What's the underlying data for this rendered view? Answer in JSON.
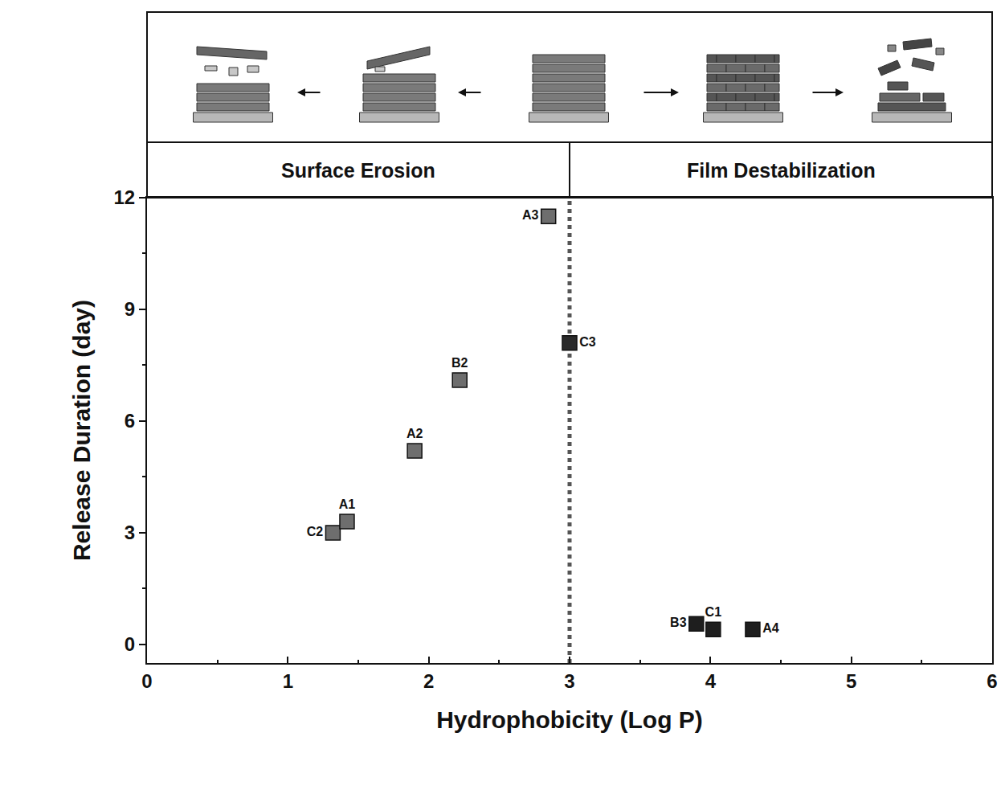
{
  "chart_data": {
    "type": "scatter",
    "x_label": "Hydrophobicity (Log P)",
    "y_label": "Release Duration (day)",
    "labels": [
      "C2",
      "A1",
      "A2",
      "B2",
      "A3",
      "C3",
      "B3",
      "C1",
      "A4"
    ],
    "x": [
      1.32,
      1.42,
      1.9,
      2.22,
      2.85,
      3.0,
      3.9,
      4.02,
      4.3
    ],
    "values": [
      3.0,
      3.3,
      5.2,
      7.1,
      11.5,
      8.1,
      0.55,
      0.4,
      0.4
    ],
    "colors": [
      "#6e6e6e",
      "#6e6e6e",
      "#6e6e6e",
      "#6e6e6e",
      "#6e6e6e",
      "#2a2a2a",
      "#1e1e1e",
      "#1e1e1e",
      "#1e1e1e"
    ],
    "marker": "square",
    "data_labels": true,
    "xlim": [
      0,
      6
    ],
    "xticks": [
      0,
      1,
      2,
      3,
      4,
      5,
      6
    ],
    "ylim": [
      -0.5,
      12
    ],
    "yticks": [
      0,
      3,
      6,
      9,
      12
    ],
    "grid": false,
    "boundary": 3,
    "line_style": "dotted",
    "regions": [
      {
        "label": "Surface Erosion"
      },
      {
        "label": "Film Destabilization"
      }
    ]
  }
}
